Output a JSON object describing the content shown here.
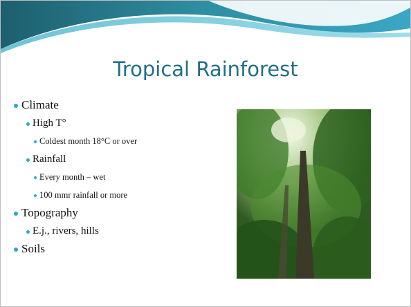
{
  "slide": {
    "title": "Tropical Rainforest",
    "bullets": [
      {
        "text": "Climate",
        "children": [
          {
            "text": "High T°",
            "children": [
              {
                "text": "Coldest month 18°C or over"
              }
            ]
          },
          {
            "text": "Rainfall",
            "children": [
              {
                "text": "Every month – wet"
              },
              {
                "text": "100 mmr rainfall or more"
              }
            ]
          }
        ]
      },
      {
        "text": "Topography",
        "children": [
          {
            "text": "E.j., rivers, hills"
          }
        ]
      },
      {
        "text": "Soils"
      }
    ]
  }
}
